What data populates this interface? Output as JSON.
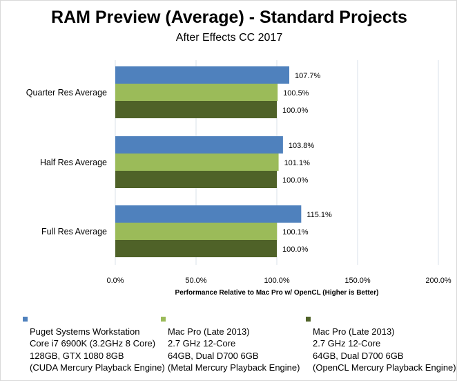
{
  "chart_data": {
    "type": "bar",
    "orientation": "horizontal",
    "title": "RAM Preview (Average) - Standard Projects",
    "subtitle": "After Effects CC 2017",
    "xlabel": "Performance Relative to Mac Pro w/ OpenCL  (Higher is Better)",
    "ylabel": "",
    "xlim": [
      0,
      200
    ],
    "xticks": [
      "0.0%",
      "50.0%",
      "100.0%",
      "150.0%",
      "200.0%"
    ],
    "grid": true,
    "legend_position": "bottom",
    "categories": [
      "Quarter Res Average",
      "Half Res Average",
      "Full Res Average"
    ],
    "series": [
      {
        "name": "Puget Systems Workstation",
        "lines": [
          "Puget Systems Workstation",
          "Core i7 6900K (3.2GHz 8 Core)",
          "128GB, GTX 1080 8GB",
          "(CUDA Mercury Playback Engine)"
        ],
        "color": "#4f81bd",
        "values": [
          107.7,
          103.8,
          115.1
        ],
        "labels": [
          "107.7%",
          "103.8%",
          "115.1%"
        ]
      },
      {
        "name": "Mac Pro (Late 2013) Metal",
        "lines": [
          "Mac Pro (Late 2013)",
          "2.7 GHz 12-Core",
          "64GB, Dual D700 6GB",
          "(Metal Mercury Playback Engine)"
        ],
        "color": "#9bbb59",
        "values": [
          100.5,
          101.1,
          100.1
        ],
        "labels": [
          "100.5%",
          "101.1%",
          "100.1%"
        ]
      },
      {
        "name": "Mac Pro (Late 2013) OpenCL",
        "lines": [
          "Mac Pro (Late 2013)",
          "2.7 GHz 12-Core",
          "64GB, Dual D700 6GB",
          "(OpenCL Mercury Playback Engine)"
        ],
        "color": "#4f6228",
        "values": [
          100.0,
          100.0,
          100.0
        ],
        "labels": [
          "100.0%",
          "100.0%",
          "100.0%"
        ]
      }
    ]
  }
}
